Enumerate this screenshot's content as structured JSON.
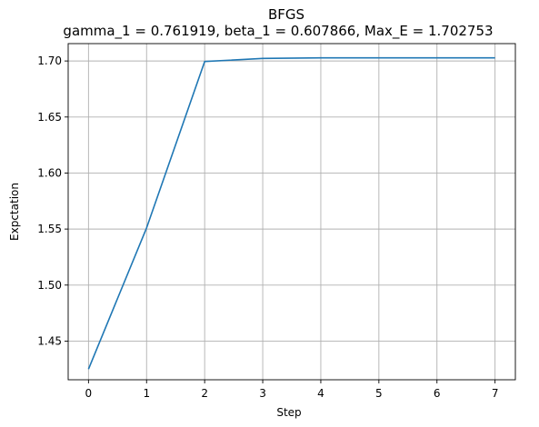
{
  "chart_data": {
    "type": "line",
    "title": "BFGS",
    "subtitle": "gamma_1 = 0.761919, beta_1 = 0.607866, Max_E = 1.702753",
    "xlabel": "Step",
    "ylabel": "Expctation",
    "x": [
      0,
      1,
      2,
      3,
      4,
      5,
      6,
      7
    ],
    "series": [
      {
        "values": [
          1.425,
          1.551,
          1.6995,
          1.7023,
          1.70275,
          1.70275,
          1.70275,
          1.70275
        ],
        "color": "#1f77b4"
      }
    ],
    "xlim": [
      -0.35,
      7.35
    ],
    "ylim": [
      1.4155,
      1.7155
    ],
    "xticks": [
      "0",
      "1",
      "2",
      "3",
      "4",
      "5",
      "6",
      "7"
    ],
    "yticks": [
      "1.45",
      "1.50",
      "1.55",
      "1.60",
      "1.65",
      "1.70"
    ],
    "grid": true
  }
}
